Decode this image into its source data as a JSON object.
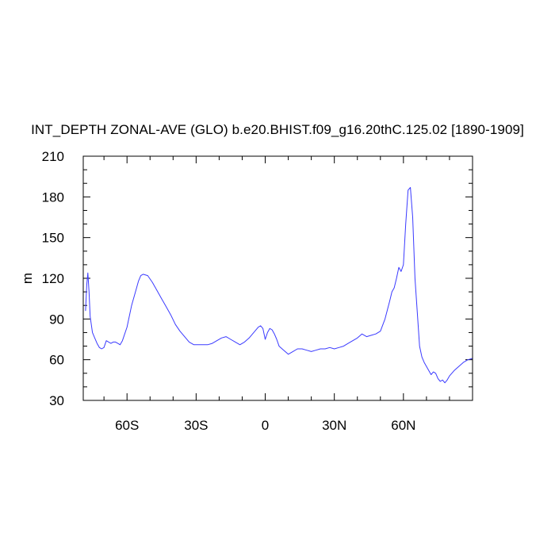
{
  "chart_data": {
    "type": "line",
    "title": "INT_DEPTH ZONAL-AVE (GLO) b.e20.BHIST.f09_g16.20thC.125.02 [1890-1909]",
    "ylabel": "m",
    "xlabel": "",
    "xlim": [
      -79,
      90
    ],
    "ylim": [
      30,
      210
    ],
    "x_ticks": [
      {
        "value": -60,
        "label": "60S"
      },
      {
        "value": -30,
        "label": "30S"
      },
      {
        "value": 0,
        "label": "0"
      },
      {
        "value": 30,
        "label": "30N"
      },
      {
        "value": 60,
        "label": "60N"
      }
    ],
    "y_ticks": [
      {
        "value": 30,
        "label": "30"
      },
      {
        "value": 60,
        "label": "60"
      },
      {
        "value": 90,
        "label": "90"
      },
      {
        "value": 120,
        "label": "120"
      },
      {
        "value": 150,
        "label": "150"
      },
      {
        "value": 180,
        "label": "180"
      },
      {
        "value": 210,
        "label": "210"
      }
    ],
    "grid": false,
    "line_color": "#3a3aff",
    "series": [
      {
        "x": [
          -78,
          -77.5,
          -77,
          -76.5,
          -76,
          -75,
          -74,
          -73,
          -72,
          -71,
          -70,
          -69,
          -68,
          -67,
          -66,
          -65,
          -64,
          -63,
          -62,
          -60,
          -58,
          -56,
          -55,
          -54,
          -53,
          -51,
          -49,
          -47,
          -45,
          -43,
          -41,
          -39,
          -37,
          -35,
          -33,
          -31,
          -29,
          -27,
          -25,
          -23,
          -21,
          -19,
          -17,
          -15,
          -13,
          -11,
          -9,
          -7,
          -5,
          -3,
          -2,
          -1,
          0,
          1,
          2,
          3,
          4,
          5,
          6,
          8,
          10,
          12,
          14,
          16,
          18,
          20,
          22,
          24,
          26,
          28,
          30,
          32,
          34,
          36,
          38,
          40,
          42,
          44,
          46,
          48,
          50,
          52,
          54,
          55,
          56,
          57,
          58,
          59,
          60,
          61,
          62,
          63,
          64,
          65,
          66,
          67,
          68,
          69,
          70,
          71,
          72,
          73,
          74,
          75,
          76,
          77,
          78,
          79,
          80,
          82,
          84,
          86,
          88,
          90
        ],
        "y": [
          96,
          115,
          124,
          110,
          92,
          80,
          76,
          72,
          69,
          68,
          69,
          74,
          73,
          72,
          73,
          73,
          72,
          71,
          74,
          84,
          100,
          112,
          118,
          122,
          123,
          122,
          117,
          111,
          105,
          99,
          93,
          86,
          81,
          77,
          73,
          71,
          71,
          71,
          71,
          72,
          74,
          76,
          77,
          75,
          73,
          71,
          73,
          76,
          80,
          84,
          85,
          83,
          75,
          80,
          83,
          82,
          79,
          75,
          70,
          67,
          64,
          66,
          68,
          68,
          67,
          66,
          67,
          68,
          68,
          69,
          68,
          69,
          70,
          72,
          74,
          76,
          79,
          77,
          78,
          79,
          81,
          90,
          103,
          110,
          113,
          120,
          128,
          125,
          130,
          160,
          185,
          187,
          165,
          120,
          95,
          70,
          62,
          58,
          55,
          52,
          49,
          51,
          50,
          46,
          44,
          45,
          43,
          45,
          48,
          52,
          55,
          58,
          60,
          61
        ]
      }
    ]
  }
}
